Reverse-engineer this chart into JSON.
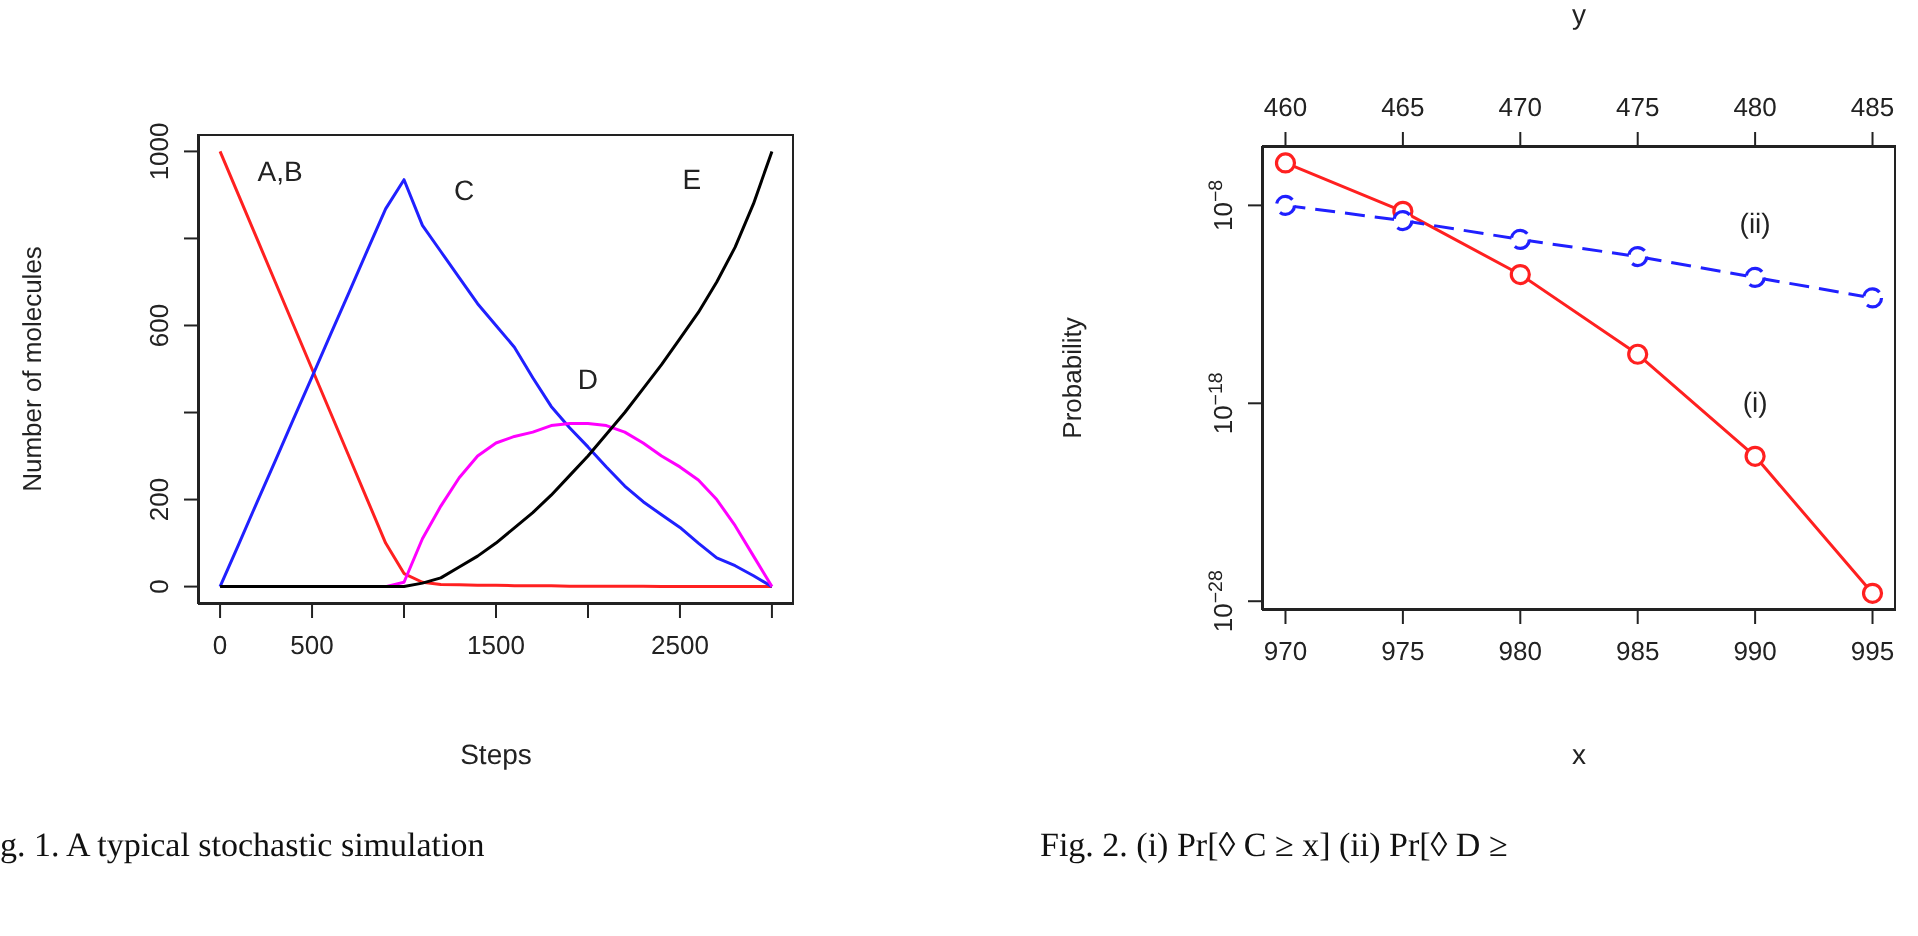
{
  "chart_data": [
    {
      "type": "line",
      "xlabel": "Steps",
      "ylabel": "Number of molecules",
      "x": [
        0,
        100,
        200,
        300,
        400,
        500,
        600,
        700,
        800,
        900,
        1000,
        1100,
        1200,
        1300,
        1400,
        1500,
        1600,
        1700,
        1800,
        1900,
        2000,
        2100,
        2200,
        2300,
        2400,
        2500,
        2600,
        2700,
        2800,
        2900,
        3000
      ],
      "series": [
        {
          "name": "A,B",
          "color": "#ff2020",
          "values": [
            1000,
            900,
            800,
            700,
            600,
            500,
            400,
            300,
            200,
            100,
            30,
            10,
            5,
            4,
            3,
            3,
            2,
            2,
            2,
            1,
            1,
            1,
            1,
            1,
            0,
            0,
            0,
            0,
            0,
            0,
            0
          ]
        },
        {
          "name": "C",
          "color": "#2020ff",
          "values": [
            0,
            96,
            193,
            289,
            386,
            482,
            579,
            675,
            772,
            868,
            935,
            830,
            770,
            710,
            650,
            600,
            550,
            480,
            414,
            365,
            321,
            275,
            231,
            195,
            165,
            136,
            100,
            66,
            48,
            25,
            0
          ]
        },
        {
          "name": "D",
          "color": "#ff00ff",
          "values": [
            null,
            null,
            null,
            null,
            null,
            null,
            null,
            null,
            0,
            0,
            10,
            110,
            185,
            250,
            300,
            330,
            345,
            355,
            370,
            375,
            375,
            370,
            355,
            330,
            300,
            275,
            245,
            200,
            140,
            70,
            0
          ]
        },
        {
          "name": "E",
          "color": "#000000",
          "values": [
            0,
            0,
            0,
            0,
            0,
            0,
            0,
            0,
            0,
            0,
            0,
            8,
            20,
            45,
            70,
            100,
            135,
            170,
            210,
            255,
            300,
            350,
            400,
            455,
            510,
            570,
            630,
            700,
            780,
            880,
            1000
          ]
        }
      ],
      "xlim": [
        -120,
        3120
      ],
      "xticks": [
        0,
        500,
        {
          "value": 1000,
          "label": null
        },
        1500,
        {
          "value": 2000,
          "label": null
        },
        2500,
        {
          "value": 3000,
          "label": null
        }
      ],
      "ylim": [
        -40,
        1040
      ],
      "yticks": [
        0,
        200,
        {
          "value": 400,
          "label": null
        },
        600,
        {
          "value": 800,
          "label": null
        },
        1000
      ],
      "marker": "none",
      "annotations": [
        "g. 1. A typical stochastic simulation"
      ]
    },
    {
      "type": "line",
      "xlabel": "x",
      "x2label": "y",
      "ylabel": "Probability",
      "series": [
        {
          "name": "(i)",
          "color": "#ff2020",
          "line_style": "solid",
          "x": [
            970,
            975,
            980,
            985,
            990,
            995
          ],
          "values": [
            1.4e-06,
            5e-09,
            3.2e-12,
            3e-16,
            2.1e-21,
            2.5e-28
          ]
        },
        {
          "name": "(ii)",
          "color": "#2020ff",
          "line_style": "dashed",
          "axis": "x2",
          "x": [
            460,
            465,
            470,
            475,
            480,
            485
          ],
          "values": [
            1e-08,
            1.7e-09,
            1.9e-10,
            2.6e-11,
            2.3e-12,
            2.1e-13
          ]
        }
      ],
      "xlim": [
        969,
        996
      ],
      "xticks": [
        970,
        975,
        980,
        985,
        990,
        995
      ],
      "x2lim": [
        459,
        486
      ],
      "x2ticks": [
        460,
        465,
        470,
        475,
        480,
        485
      ],
      "log": "y",
      "ylim": [
        3.6e-29,
        1e-05
      ],
      "yticks": [
        {
          "value": 1e-08,
          "label": "10$^{−8}$"
        },
        {
          "value": 1e-18,
          "label": "10$^{−18}$"
        },
        {
          "value": 1e-28,
          "label": "10$^{−28}$"
        }
      ],
      "marker": "circle",
      "annotations": [
        "Fig. 2. (i) Pr[◊ C ≥ x] (ii) Pr[◊ D ≥"
      ]
    }
  ]
}
